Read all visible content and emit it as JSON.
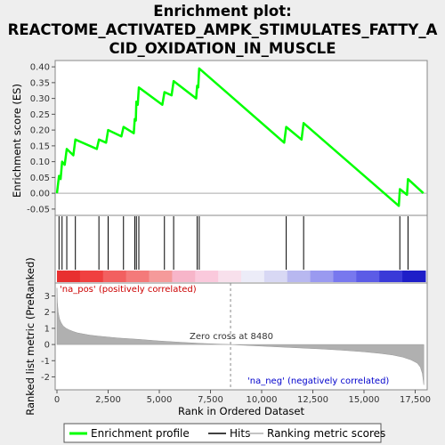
{
  "title_lines": [
    "Enrichment plot:",
    "REACTOME_ACTIVATED_AMPK_STIMULATES_FATTY_A",
    "CID_OXIDATION_IN_MUSCLE"
  ],
  "legend": {
    "profile": "Enrichment profile",
    "hits": "Hits",
    "ranking": "Ranking metric scores"
  },
  "colors": {
    "profile": "#00ff00",
    "hits": "#000000",
    "ranking": "#b0b0b0",
    "pos_label": "#cc0000",
    "neg_label": "#0000cc",
    "zero_line": "#888888"
  },
  "chart_data": [
    {
      "type": "line",
      "name": "enrichment-score",
      "ylabel": "Enrichment score (ES)",
      "xlim": [
        0,
        18000
      ],
      "ylim": [
        -0.07,
        0.42
      ],
      "yticks": [
        -0.05,
        0.0,
        0.05,
        0.1,
        0.15,
        0.2,
        0.25,
        0.3,
        0.35,
        0.4
      ],
      "ytick_labels": [
        "-0.05",
        "0.00",
        "0.05",
        "0.10",
        "0.15",
        "0.20",
        "0.25",
        "0.30",
        "0.35",
        "0.40"
      ],
      "x": [
        0,
        100,
        180,
        250,
        380,
        480,
        800,
        900,
        1950,
        2050,
        2400,
        2500,
        3150,
        3250,
        3750,
        3800,
        3850,
        3880,
        3950,
        4000,
        5150,
        5250,
        5600,
        5700,
        6800,
        6850,
        6900,
        6950,
        11100,
        11200,
        11950,
        12050,
        16700,
        16750,
        17100,
        17150,
        17900
      ],
      "y": [
        0.0,
        0.055,
        0.045,
        0.1,
        0.09,
        0.14,
        0.12,
        0.17,
        0.14,
        0.17,
        0.16,
        0.2,
        0.18,
        0.21,
        0.19,
        0.235,
        0.23,
        0.29,
        0.28,
        0.335,
        0.28,
        0.32,
        0.31,
        0.355,
        0.3,
        0.34,
        0.335,
        0.395,
        0.16,
        0.21,
        0.17,
        0.222,
        -0.04,
        0.013,
        -0.005,
        0.045,
        0.0
      ]
    },
    {
      "type": "hits",
      "name": "hits",
      "x": [
        100,
        250,
        480,
        900,
        2050,
        2500,
        3250,
        3800,
        3880,
        4000,
        5250,
        5700,
        6850,
        6950,
        11200,
        12050,
        16750,
        17150
      ]
    },
    {
      "type": "area",
      "name": "ranked-metric",
      "xlabel": "Rank in Ordered Dataset",
      "ylabel": "Ranked list metric (PreRanked)",
      "xlim": [
        0,
        18000
      ],
      "ylim": [
        -2.8,
        3.8
      ],
      "yticks": [
        -2,
        -1,
        0,
        1,
        2,
        3
      ],
      "ytick_labels": [
        "-2",
        "-1",
        "0",
        "1",
        "2",
        "3"
      ],
      "xticks": [
        0,
        2500,
        5000,
        7500,
        10000,
        12500,
        15000,
        17500
      ],
      "xtick_labels": [
        "0",
        "2,500",
        "5,000",
        "7,500",
        "10,000",
        "12,500",
        "15,000",
        "17,500"
      ],
      "x": [
        0,
        20,
        60,
        120,
        200,
        300,
        450,
        600,
        800,
        1000,
        1300,
        1600,
        2000,
        2500,
        3000,
        4000,
        5000,
        6000,
        7000,
        8000,
        8480,
        9000,
        10000,
        11000,
        12000,
        13000,
        14000,
        15000,
        15800,
        16400,
        16900,
        17300,
        17600,
        17750,
        17850,
        17920
      ],
      "y": [
        3.5,
        2.6,
        2.0,
        1.6,
        1.35,
        1.15,
        1.0,
        0.9,
        0.8,
        0.72,
        0.65,
        0.58,
        0.52,
        0.46,
        0.4,
        0.32,
        0.22,
        0.14,
        0.07,
        0.02,
        0.0,
        -0.04,
        -0.1,
        -0.16,
        -0.22,
        -0.28,
        -0.36,
        -0.45,
        -0.55,
        -0.65,
        -0.78,
        -0.95,
        -1.15,
        -1.4,
        -1.8,
        -2.5
      ],
      "annotations": {
        "pos": "'na_pos' (positively correlated)",
        "neg": "'na_neg' (negatively correlated)",
        "zero": "Zero cross at 8480"
      },
      "zero_cross": 8480
    }
  ]
}
